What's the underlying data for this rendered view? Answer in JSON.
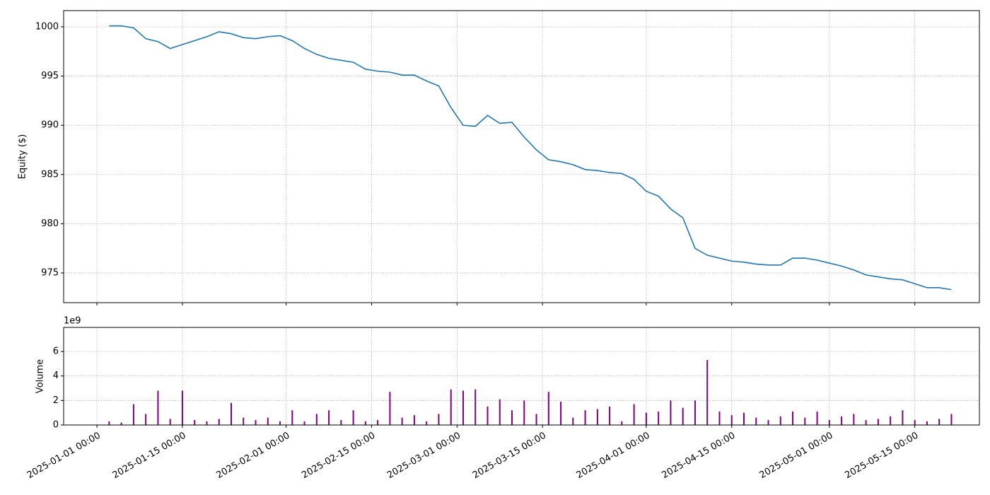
{
  "chart_data": [
    {
      "type": "line",
      "y_label": "Equity ($)",
      "x": [
        "2025-01-03 00:00",
        "2025-01-05 00:00",
        "2025-01-07 00:00",
        "2025-01-09 00:00",
        "2025-01-11 00:00",
        "2025-01-13 00:00",
        "2025-01-15 00:00",
        "2025-01-17 00:00",
        "2025-01-19 00:00",
        "2025-01-21 00:00",
        "2025-01-23 00:00",
        "2025-01-25 00:00",
        "2025-01-27 00:00",
        "2025-01-29 00:00",
        "2025-01-31 00:00",
        "2025-02-02 00:00",
        "2025-02-04 00:00",
        "2025-02-06 00:00",
        "2025-02-08 00:00",
        "2025-02-10 00:00",
        "2025-02-12 00:00",
        "2025-02-14 00:00",
        "2025-02-16 00:00",
        "2025-02-18 00:00",
        "2025-02-20 00:00",
        "2025-02-22 00:00",
        "2025-02-24 00:00",
        "2025-02-26 00:00",
        "2025-02-28 00:00",
        "2025-03-02 00:00",
        "2025-03-04 00:00",
        "2025-03-06 00:00",
        "2025-03-08 00:00",
        "2025-03-10 00:00",
        "2025-03-12 00:00",
        "2025-03-14 00:00",
        "2025-03-16 00:00",
        "2025-03-18 00:00",
        "2025-03-20 00:00",
        "2025-03-22 00:00",
        "2025-03-24 00:00",
        "2025-03-26 00:00",
        "2025-03-28 00:00",
        "2025-03-30 00:00",
        "2025-04-01 00:00",
        "2025-04-03 00:00",
        "2025-04-05 00:00",
        "2025-04-07 00:00",
        "2025-04-09 00:00",
        "2025-04-11 00:00",
        "2025-04-13 00:00",
        "2025-04-15 00:00",
        "2025-04-17 00:00",
        "2025-04-19 00:00",
        "2025-04-21 00:00",
        "2025-04-23 00:00",
        "2025-04-25 00:00",
        "2025-04-27 00:00",
        "2025-04-29 00:00",
        "2025-05-01 00:00",
        "2025-05-03 00:00",
        "2025-05-05 00:00",
        "2025-05-07 00:00",
        "2025-05-09 00:00",
        "2025-05-11 00:00",
        "2025-05-13 00:00",
        "2025-05-15 00:00",
        "2025-05-17 00:00",
        "2025-05-19 00:00",
        "2025-05-21 00:00"
      ],
      "series": [
        {
          "color": "#1f77b4",
          "values": [
            1000.1,
            1000.1,
            999.9,
            998.8,
            998.5,
            997.8,
            998.2,
            998.6,
            999.0,
            999.5,
            999.3,
            998.9,
            998.8,
            999.0,
            999.1,
            998.6,
            997.8,
            997.2,
            996.8,
            996.6,
            996.4,
            995.7,
            995.5,
            995.4,
            995.1,
            995.1,
            994.5,
            994.0,
            991.8,
            990.0,
            989.9,
            991.0,
            990.2,
            990.3,
            988.8,
            987.5,
            986.5,
            986.3,
            986.0,
            985.5,
            985.4,
            985.2,
            985.1,
            984.5,
            983.3,
            982.8,
            981.5,
            980.6,
            977.5,
            976.8,
            976.5,
            976.2,
            976.1,
            975.9,
            975.8,
            975.8,
            976.5,
            976.5,
            976.3,
            976.0,
            975.7,
            975.3,
            974.8,
            974.6,
            974.4,
            974.3,
            973.9,
            973.5,
            973.5,
            973.3
          ]
        }
      ],
      "xlim": [
        "2024-12-26 13:00",
        "2025-05-25 14:00"
      ],
      "ylim": [
        971.98,
        1001.65
      ],
      "yticks": [
        975,
        980,
        985,
        990,
        995,
        1000
      ],
      "grid": true
    },
    {
      "type": "bar",
      "y_label": "Volume",
      "y_offset_text": "1e9",
      "x": [
        "2025-01-03 00:00",
        "2025-01-05 00:00",
        "2025-01-07 00:00",
        "2025-01-09 00:00",
        "2025-01-11 00:00",
        "2025-01-13 00:00",
        "2025-01-15 00:00",
        "2025-01-17 00:00",
        "2025-01-19 00:00",
        "2025-01-21 00:00",
        "2025-01-23 00:00",
        "2025-01-25 00:00",
        "2025-01-27 00:00",
        "2025-01-29 00:00",
        "2025-01-31 00:00",
        "2025-02-02 00:00",
        "2025-02-04 00:00",
        "2025-02-06 00:00",
        "2025-02-08 00:00",
        "2025-02-10 00:00",
        "2025-02-12 00:00",
        "2025-02-14 00:00",
        "2025-02-16 00:00",
        "2025-02-18 00:00",
        "2025-02-20 00:00",
        "2025-02-22 00:00",
        "2025-02-24 00:00",
        "2025-02-26 00:00",
        "2025-02-28 00:00",
        "2025-03-02 00:00",
        "2025-03-04 00:00",
        "2025-03-06 00:00",
        "2025-03-08 00:00",
        "2025-03-10 00:00",
        "2025-03-12 00:00",
        "2025-03-14 00:00",
        "2025-03-16 00:00",
        "2025-03-18 00:00",
        "2025-03-20 00:00",
        "2025-03-22 00:00",
        "2025-03-24 00:00",
        "2025-03-26 00:00",
        "2025-03-28 00:00",
        "2025-03-30 00:00",
        "2025-04-01 00:00",
        "2025-04-03 00:00",
        "2025-04-05 00:00",
        "2025-04-07 00:00",
        "2025-04-09 00:00",
        "2025-04-11 00:00",
        "2025-04-13 00:00",
        "2025-04-15 00:00",
        "2025-04-17 00:00",
        "2025-04-19 00:00",
        "2025-04-21 00:00",
        "2025-04-23 00:00",
        "2025-04-25 00:00",
        "2025-04-27 00:00",
        "2025-04-29 00:00",
        "2025-05-01 00:00",
        "2025-05-03 00:00",
        "2025-05-05 00:00",
        "2025-05-07 00:00",
        "2025-05-09 00:00",
        "2025-05-11 00:00",
        "2025-05-13 00:00",
        "2025-05-15 00:00",
        "2025-05-17 00:00",
        "2025-05-19 00:00",
        "2025-05-21 00:00"
      ],
      "series": [
        {
          "color": "#800080",
          "values": [
            300000000.0,
            200000000.0,
            1700000000.0,
            900000000.0,
            2800000000.0,
            500000000.0,
            2800000000.0,
            400000000.0,
            300000000.0,
            500000000.0,
            1800000000.0,
            600000000.0,
            400000000.0,
            600000000.0,
            300000000.0,
            1200000000.0,
            300000000.0,
            900000000.0,
            1200000000.0,
            400000000.0,
            1200000000.0,
            300000000.0,
            400000000.0,
            2700000000.0,
            600000000.0,
            800000000.0,
            300000000.0,
            900000000.0,
            2900000000.0,
            2800000000.0,
            2900000000.0,
            1500000000.0,
            2100000000.0,
            1200000000.0,
            2000000000.0,
            900000000.0,
            2700000000.0,
            1900000000.0,
            600000000.0,
            1200000000.0,
            1300000000.0,
            1500000000.0,
            300000000.0,
            1700000000.0,
            1000000000.0,
            1100000000.0,
            2000000000.0,
            1400000000.0,
            2000000000.0,
            5300000000.0,
            1100000000.0,
            800000000.0,
            1000000000.0,
            600000000.0,
            400000000.0,
            700000000.0,
            1100000000.0,
            600000000.0,
            1100000000.0,
            400000000.0,
            700000000.0,
            900000000.0,
            400000000.0,
            500000000.0,
            700000000.0,
            1200000000.0,
            400000000.0,
            300000000.0,
            500000000.0,
            900000000.0
          ]
        }
      ],
      "xlim": [
        "2024-12-26 13:00",
        "2025-05-25 14:00"
      ],
      "xticks": [
        "2025-01-01 00:00",
        "2025-01-15 00:00",
        "2025-02-01 00:00",
        "2025-02-15 00:00",
        "2025-03-01 00:00",
        "2025-03-15 00:00",
        "2025-04-01 00:00",
        "2025-04-15 00:00",
        "2025-05-01 00:00",
        "2025-05-15 00:00"
      ],
      "ylim": [
        0,
        7960000000.0
      ],
      "yticks": [
        {
          "value": 0,
          "label": "0"
        },
        {
          "value": 2000000000.0,
          "label": "2"
        },
        {
          "value": 4000000000.0,
          "label": "4"
        },
        {
          "value": 6000000000.0,
          "label": "6"
        }
      ],
      "grid": true
    }
  ]
}
